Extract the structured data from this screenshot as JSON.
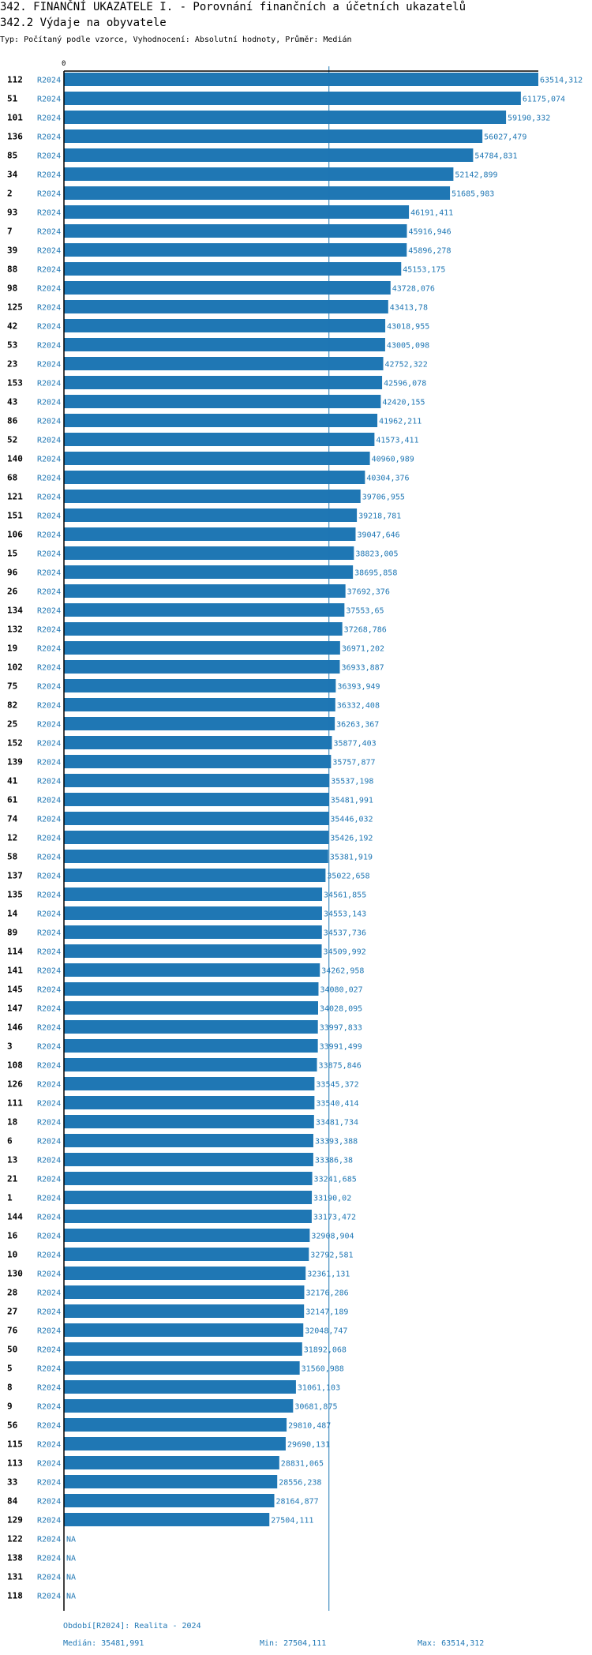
{
  "title": "342. FINANČNÍ UKAZATELE I. - Porovnání finančních a účetních ukazatelů",
  "subtitle": "342.2 Výdaje na obyvatele",
  "info": "Typ: Počítaný podle vzorce, Vyhodnocení: Absolutní hodnoty, Průměr: Medián",
  "footer": {
    "period": "Období[R2024]: Realita - 2024",
    "median": "Medián: 35481,991",
    "min": "Min: 27504,111",
    "max": "Max: 63514,312"
  },
  "chart_data": {
    "type": "bar",
    "orientation": "horizontal",
    "axis_tick": "0",
    "xlim": [
      0,
      63514.312
    ],
    "median": 35481.991,
    "colors": {
      "bar": "#1f77b4",
      "median_line": "#1f77b4",
      "axis": "#000000"
    },
    "rows": [
      {
        "id": "112",
        "period": "R2024",
        "value": 63514.312,
        "label": "63514,312"
      },
      {
        "id": "51",
        "period": "R2024",
        "value": 61175.074,
        "label": "61175,074"
      },
      {
        "id": "101",
        "period": "R2024",
        "value": 59190.332,
        "label": "59190,332"
      },
      {
        "id": "136",
        "period": "R2024",
        "value": 56027.479,
        "label": "56027,479"
      },
      {
        "id": "85",
        "period": "R2024",
        "value": 54784.831,
        "label": "54784,831"
      },
      {
        "id": "34",
        "period": "R2024",
        "value": 52142.899,
        "label": "52142,899"
      },
      {
        "id": "2",
        "period": "R2024",
        "value": 51685.983,
        "label": "51685,983"
      },
      {
        "id": "93",
        "period": "R2024",
        "value": 46191.411,
        "label": "46191,411"
      },
      {
        "id": "7",
        "period": "R2024",
        "value": 45916.946,
        "label": "45916,946"
      },
      {
        "id": "39",
        "period": "R2024",
        "value": 45896.278,
        "label": "45896,278"
      },
      {
        "id": "88",
        "period": "R2024",
        "value": 45153.175,
        "label": "45153,175"
      },
      {
        "id": "98",
        "period": "R2024",
        "value": 43728.076,
        "label": "43728,076"
      },
      {
        "id": "125",
        "period": "R2024",
        "value": 43413.78,
        "label": "43413,78"
      },
      {
        "id": "42",
        "period": "R2024",
        "value": 43018.955,
        "label": "43018,955"
      },
      {
        "id": "53",
        "period": "R2024",
        "value": 43005.098,
        "label": "43005,098"
      },
      {
        "id": "23",
        "period": "R2024",
        "value": 42752.322,
        "label": "42752,322"
      },
      {
        "id": "153",
        "period": "R2024",
        "value": 42596.078,
        "label": "42596,078"
      },
      {
        "id": "43",
        "period": "R2024",
        "value": 42420.155,
        "label": "42420,155"
      },
      {
        "id": "86",
        "period": "R2024",
        "value": 41962.211,
        "label": "41962,211"
      },
      {
        "id": "52",
        "period": "R2024",
        "value": 41573.411,
        "label": "41573,411"
      },
      {
        "id": "140",
        "period": "R2024",
        "value": 40960.989,
        "label": "40960,989"
      },
      {
        "id": "68",
        "period": "R2024",
        "value": 40304.376,
        "label": "40304,376"
      },
      {
        "id": "121",
        "period": "R2024",
        "value": 39706.955,
        "label": "39706,955"
      },
      {
        "id": "151",
        "period": "R2024",
        "value": 39218.781,
        "label": "39218,781"
      },
      {
        "id": "106",
        "period": "R2024",
        "value": 39047.646,
        "label": "39047,646"
      },
      {
        "id": "15",
        "period": "R2024",
        "value": 38823.005,
        "label": "38823,005"
      },
      {
        "id": "96",
        "period": "R2024",
        "value": 38695.858,
        "label": "38695,858"
      },
      {
        "id": "26",
        "period": "R2024",
        "value": 37692.376,
        "label": "37692,376"
      },
      {
        "id": "134",
        "period": "R2024",
        "value": 37553.65,
        "label": "37553,65"
      },
      {
        "id": "132",
        "period": "R2024",
        "value": 37268.786,
        "label": "37268,786"
      },
      {
        "id": "19",
        "period": "R2024",
        "value": 36971.202,
        "label": "36971,202"
      },
      {
        "id": "102",
        "period": "R2024",
        "value": 36933.887,
        "label": "36933,887"
      },
      {
        "id": "75",
        "period": "R2024",
        "value": 36393.949,
        "label": "36393,949"
      },
      {
        "id": "82",
        "period": "R2024",
        "value": 36332.408,
        "label": "36332,408"
      },
      {
        "id": "25",
        "period": "R2024",
        "value": 36263.367,
        "label": "36263,367"
      },
      {
        "id": "152",
        "period": "R2024",
        "value": 35877.403,
        "label": "35877,403"
      },
      {
        "id": "139",
        "period": "R2024",
        "value": 35757.877,
        "label": "35757,877"
      },
      {
        "id": "41",
        "period": "R2024",
        "value": 35537.198,
        "label": "35537,198"
      },
      {
        "id": "61",
        "period": "R2024",
        "value": 35481.991,
        "label": "35481,991"
      },
      {
        "id": "74",
        "period": "R2024",
        "value": 35446.032,
        "label": "35446,032"
      },
      {
        "id": "12",
        "period": "R2024",
        "value": 35426.192,
        "label": "35426,192"
      },
      {
        "id": "58",
        "period": "R2024",
        "value": 35381.919,
        "label": "35381,919"
      },
      {
        "id": "137",
        "period": "R2024",
        "value": 35022.658,
        "label": "35022,658"
      },
      {
        "id": "135",
        "period": "R2024",
        "value": 34561.855,
        "label": "34561,855"
      },
      {
        "id": "14",
        "period": "R2024",
        "value": 34553.143,
        "label": "34553,143"
      },
      {
        "id": "89",
        "period": "R2024",
        "value": 34537.736,
        "label": "34537,736"
      },
      {
        "id": "114",
        "period": "R2024",
        "value": 34509.992,
        "label": "34509,992"
      },
      {
        "id": "141",
        "period": "R2024",
        "value": 34262.958,
        "label": "34262,958"
      },
      {
        "id": "145",
        "period": "R2024",
        "value": 34080.027,
        "label": "34080,027"
      },
      {
        "id": "147",
        "period": "R2024",
        "value": 34028.095,
        "label": "34028,095"
      },
      {
        "id": "146",
        "period": "R2024",
        "value": 33997.833,
        "label": "33997,833"
      },
      {
        "id": "3",
        "period": "R2024",
        "value": 33991.499,
        "label": "33991,499"
      },
      {
        "id": "108",
        "period": "R2024",
        "value": 33875.846,
        "label": "33875,846"
      },
      {
        "id": "126",
        "period": "R2024",
        "value": 33545.372,
        "label": "33545,372"
      },
      {
        "id": "111",
        "period": "R2024",
        "value": 33540.414,
        "label": "33540,414"
      },
      {
        "id": "18",
        "period": "R2024",
        "value": 33481.734,
        "label": "33481,734"
      },
      {
        "id": "6",
        "period": "R2024",
        "value": 33393.388,
        "label": "33393,388"
      },
      {
        "id": "13",
        "period": "R2024",
        "value": 33386.38,
        "label": "33386,38"
      },
      {
        "id": "21",
        "period": "R2024",
        "value": 33241.685,
        "label": "33241,685"
      },
      {
        "id": "1",
        "period": "R2024",
        "value": 33190.02,
        "label": "33190,02"
      },
      {
        "id": "144",
        "period": "R2024",
        "value": 33173.472,
        "label": "33173,472"
      },
      {
        "id": "16",
        "period": "R2024",
        "value": 32908.904,
        "label": "32908,904"
      },
      {
        "id": "10",
        "period": "R2024",
        "value": 32792.581,
        "label": "32792,581"
      },
      {
        "id": "130",
        "period": "R2024",
        "value": 32361.131,
        "label": "32361,131"
      },
      {
        "id": "28",
        "period": "R2024",
        "value": 32176.286,
        "label": "32176,286"
      },
      {
        "id": "27",
        "period": "R2024",
        "value": 32147.189,
        "label": "32147,189"
      },
      {
        "id": "76",
        "period": "R2024",
        "value": 32048.747,
        "label": "32048,747"
      },
      {
        "id": "50",
        "period": "R2024",
        "value": 31892.068,
        "label": "31892,068"
      },
      {
        "id": "5",
        "period": "R2024",
        "value": 31560.988,
        "label": "31560,988"
      },
      {
        "id": "8",
        "period": "R2024",
        "value": 31061.103,
        "label": "31061,103"
      },
      {
        "id": "9",
        "period": "R2024",
        "value": 30681.875,
        "label": "30681,875"
      },
      {
        "id": "56",
        "period": "R2024",
        "value": 29810.487,
        "label": "29810,487"
      },
      {
        "id": "115",
        "period": "R2024",
        "value": 29690.131,
        "label": "29690,131"
      },
      {
        "id": "113",
        "period": "R2024",
        "value": 28831.065,
        "label": "28831,065"
      },
      {
        "id": "33",
        "period": "R2024",
        "value": 28556.238,
        "label": "28556,238"
      },
      {
        "id": "84",
        "period": "R2024",
        "value": 28164.877,
        "label": "28164,877"
      },
      {
        "id": "129",
        "period": "R2024",
        "value": 27504.111,
        "label": "27504,111"
      },
      {
        "id": "122",
        "period": "R2024",
        "value": null,
        "label": "NA"
      },
      {
        "id": "138",
        "period": "R2024",
        "value": null,
        "label": "NA"
      },
      {
        "id": "131",
        "period": "R2024",
        "value": null,
        "label": "NA"
      },
      {
        "id": "118",
        "period": "R2024",
        "value": null,
        "label": "NA"
      }
    ]
  }
}
